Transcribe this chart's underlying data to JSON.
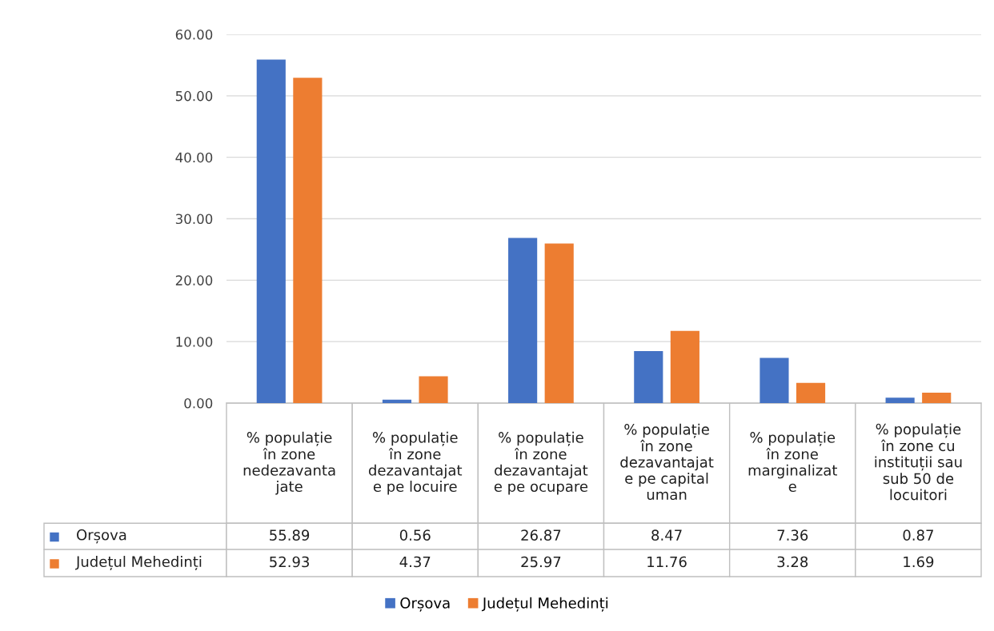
{
  "chart_data": {
    "type": "bar",
    "categories": [
      "% populație\nîn zone\nnedezavanta\njate",
      "% populație\nîn zone\ndezavantajat\ne pe locuire",
      "% populație\nîn zone\ndezavantajat\ne pe ocupare",
      "% populație\nîn zone\ndezavantajat\ne pe capital\numan",
      "% populație\nîn zone\nmarginalizat\ne",
      "% populație\nîn zone cu\ninstituții sau\nsub 50 de\nlocuitori"
    ],
    "series": [
      {
        "name": "Orșova",
        "color": "#4472c4",
        "values": [
          55.89,
          0.56,
          26.87,
          8.47,
          7.36,
          0.87
        ]
      },
      {
        "name": "Județul Mehedinți",
        "color": "#ed7d31",
        "values": [
          52.93,
          4.37,
          25.97,
          11.76,
          3.28,
          1.69
        ]
      }
    ],
    "ylim": [
      0,
      60
    ],
    "yticks": [
      {
        "value": 0,
        "label": "0.00"
      },
      {
        "value": 10,
        "label": "10.00"
      },
      {
        "value": 20,
        "label": "20.00"
      },
      {
        "value": 30,
        "label": "30.00"
      },
      {
        "value": 40,
        "label": "40.00"
      },
      {
        "value": 50,
        "label": "50.00"
      },
      {
        "value": 60,
        "label": "60.00"
      }
    ],
    "grid": "y",
    "legend": "bottom",
    "data_labels": true
  }
}
